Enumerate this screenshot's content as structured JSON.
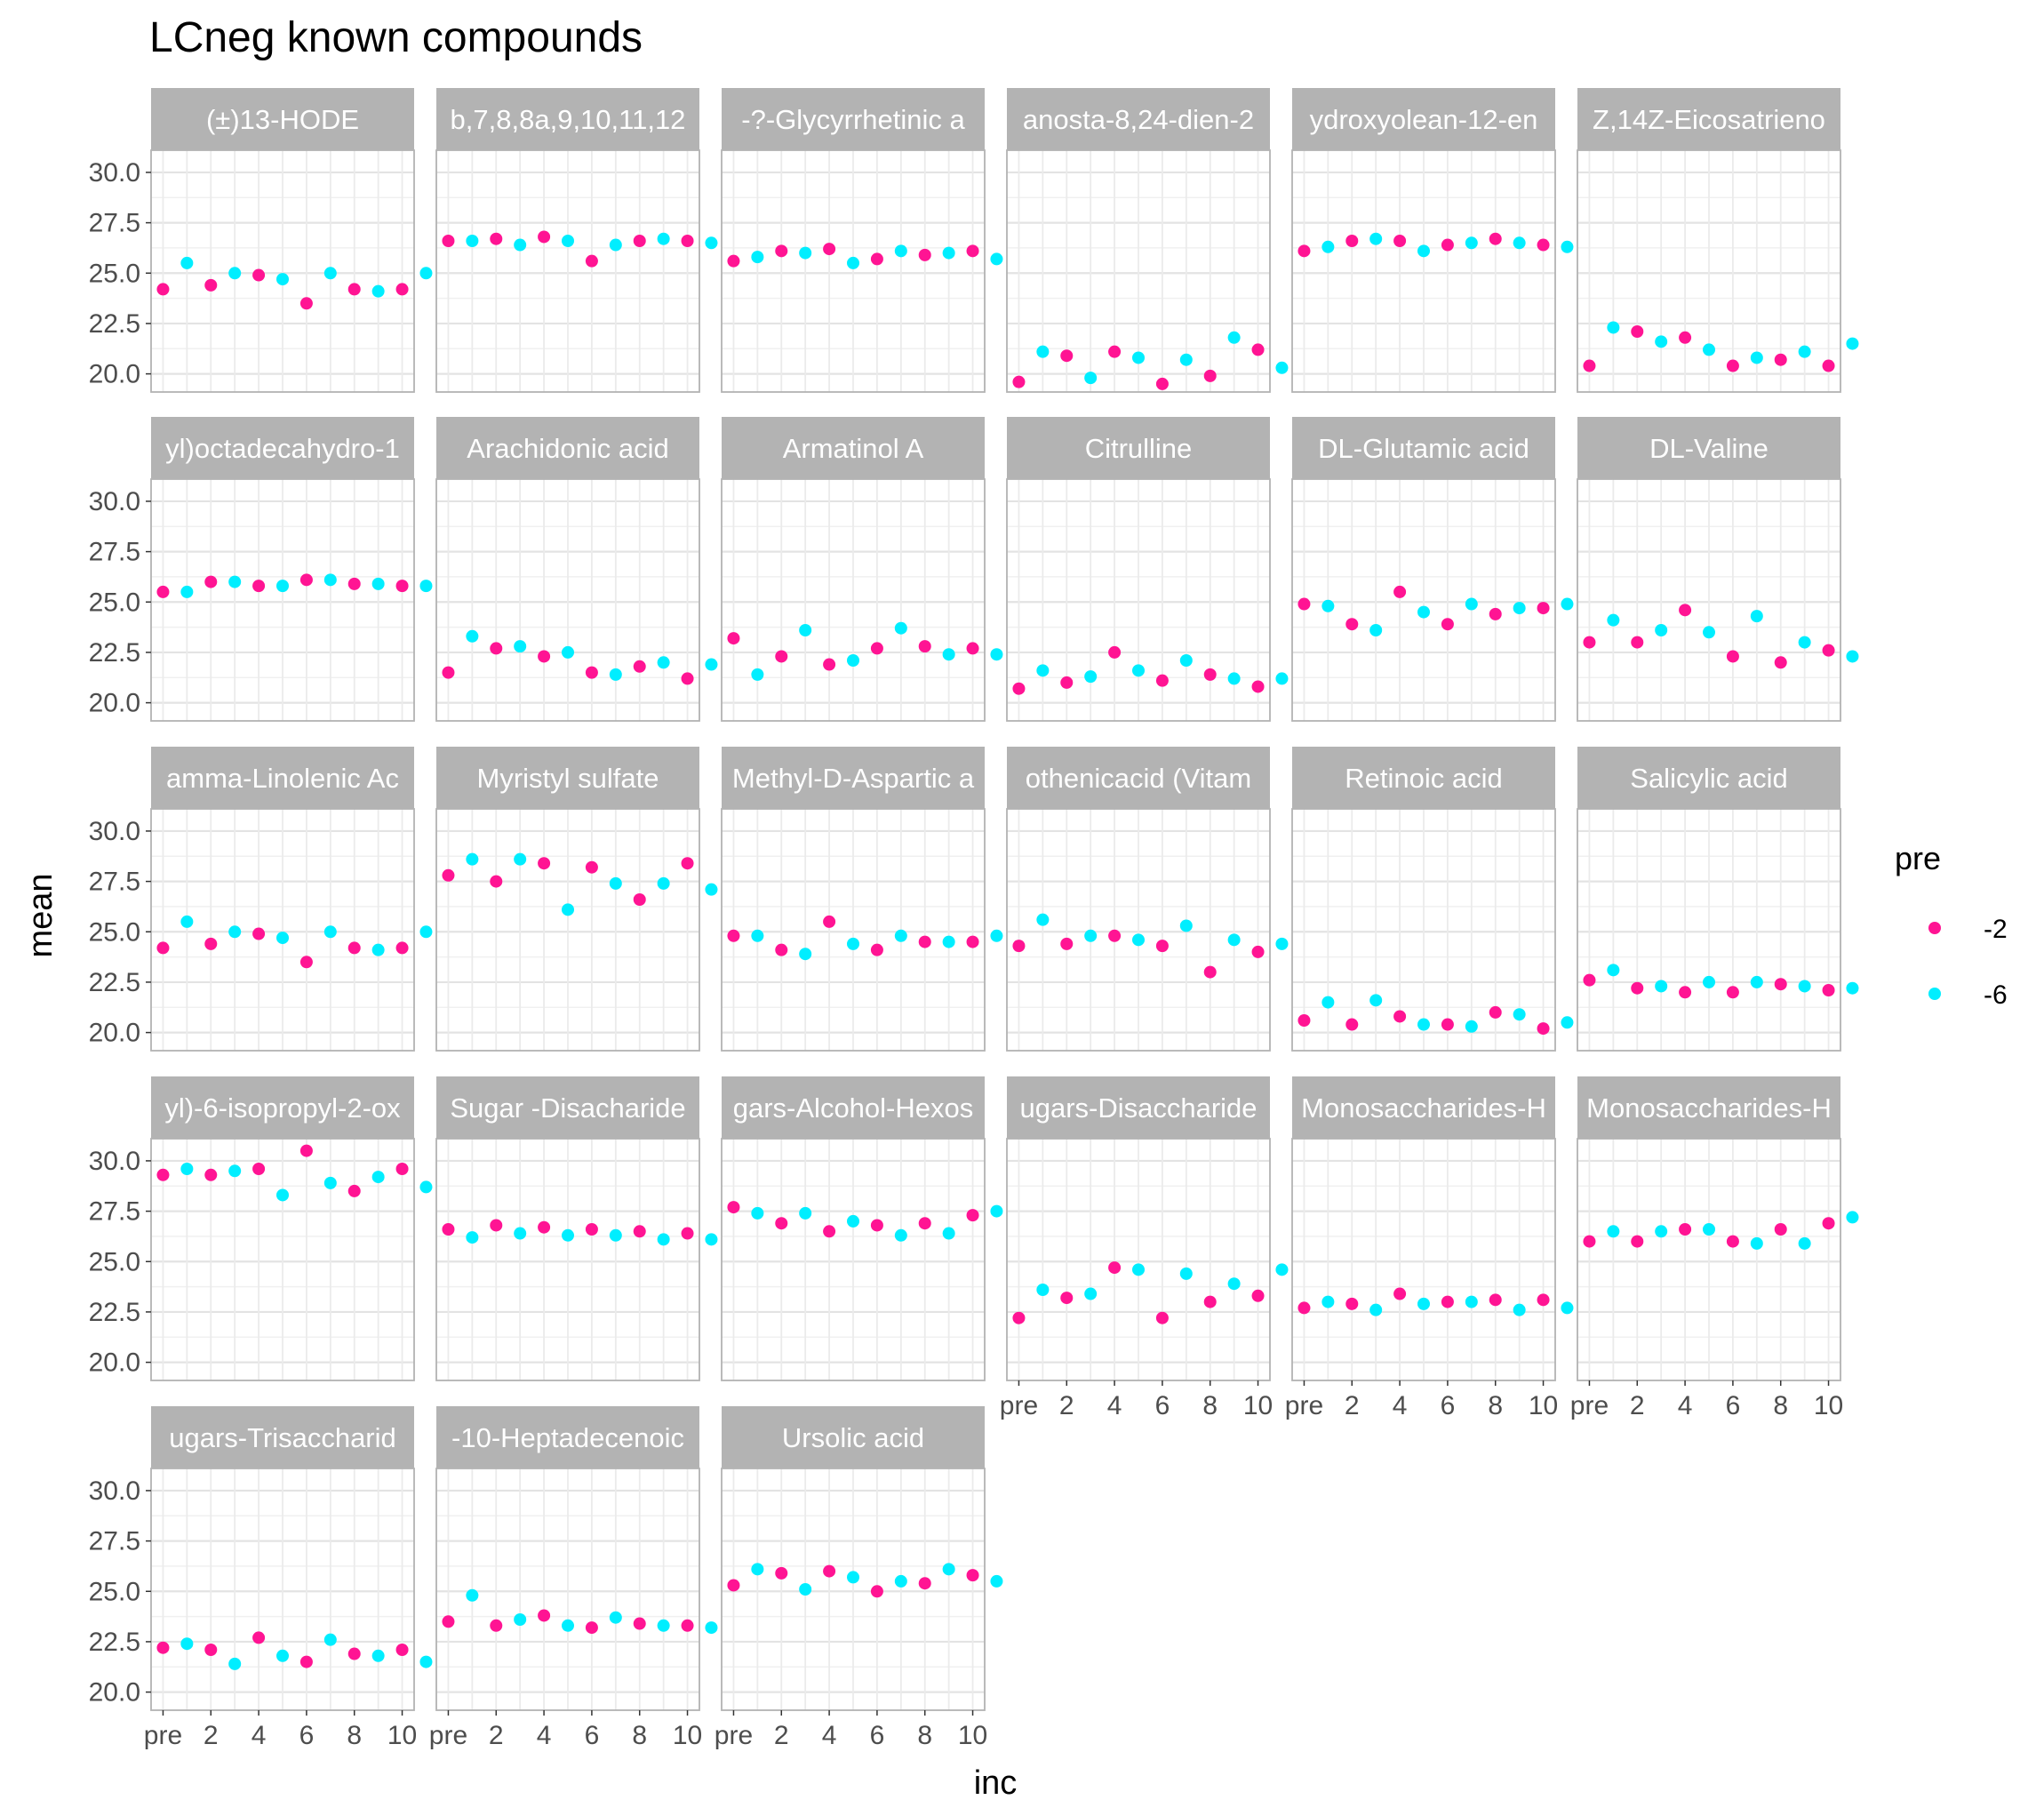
{
  "chart_data": {
    "type": "scatter",
    "title": "LCneg known compounds",
    "xlabel": "inc",
    "ylabel": "mean",
    "x_ticks": [
      "pre",
      "2",
      "4",
      "6",
      "8",
      "10"
    ],
    "ylim": [
      19.1,
      31.1
    ],
    "y_ticks": [
      "20.0",
      "22.5",
      "25.0",
      "27.5",
      "30.0"
    ],
    "grid": true,
    "legend": {
      "title": "pre",
      "position": "right",
      "entries": [
        {
          "label": "-2",
          "color": "#ff1493"
        },
        {
          "label": "-6",
          "color": "#00eeff"
        }
      ]
    },
    "x_categories": [
      "pre",
      "1",
      "2",
      "3",
      "4",
      "5",
      "6",
      "7",
      "8",
      "9",
      "10"
    ],
    "panels": [
      {
        "label": "(±)13-HODE",
        "pink": [
          24.2,
          24.4,
          24.9,
          23.5,
          24.2,
          24.2
        ],
        "cyan": [
          25.5,
          25.0,
          24.7,
          25.0,
          24.1,
          25.0
        ]
      },
      {
        "label": "b,7,8,8a,9,10,11,12",
        "pink": [
          26.6,
          26.7,
          26.8,
          25.6,
          26.6,
          26.6
        ],
        "cyan": [
          26.6,
          26.4,
          26.6,
          26.4,
          26.7,
          26.5
        ]
      },
      {
        "label": "-?-Glycyrrhetinic a",
        "pink": [
          25.6,
          26.1,
          26.2,
          25.7,
          25.9,
          26.1
        ],
        "cyan": [
          25.8,
          26.0,
          25.5,
          26.1,
          26.0,
          25.7
        ]
      },
      {
        "label": "anosta-8,24-dien-2",
        "pink": [
          19.6,
          20.9,
          21.1,
          19.5,
          19.9,
          21.2
        ],
        "cyan": [
          21.1,
          19.8,
          20.8,
          20.7,
          21.8,
          20.3
        ]
      },
      {
        "label": "ydroxyolean-12-en",
        "pink": [
          26.1,
          26.6,
          26.6,
          26.4,
          26.7,
          26.4
        ],
        "cyan": [
          26.3,
          26.7,
          26.1,
          26.5,
          26.5,
          26.3
        ]
      },
      {
        "label": "Z,14Z-Eicosatrieno",
        "pink": [
          20.4,
          22.1,
          21.8,
          20.4,
          20.7,
          20.4
        ],
        "cyan": [
          22.3,
          21.6,
          21.2,
          20.8,
          21.1,
          21.5
        ]
      },
      {
        "label": "yl)octadecahydro-1",
        "pink": [
          25.5,
          26.0,
          25.8,
          26.1,
          25.9,
          25.8
        ],
        "cyan": [
          25.5,
          26.0,
          25.8,
          26.1,
          25.9,
          25.8
        ]
      },
      {
        "label": "Arachidonic acid",
        "pink": [
          21.5,
          22.7,
          22.3,
          21.5,
          21.8,
          21.2
        ],
        "cyan": [
          23.3,
          22.8,
          22.5,
          21.4,
          22.0,
          21.9
        ]
      },
      {
        "label": "Armatinol A",
        "pink": [
          23.2,
          22.3,
          21.9,
          22.7,
          22.8,
          22.7
        ],
        "cyan": [
          21.4,
          23.6,
          22.1,
          23.7,
          22.4,
          22.4
        ]
      },
      {
        "label": "Citrulline",
        "pink": [
          20.7,
          21.0,
          22.5,
          21.1,
          21.4,
          20.8
        ],
        "cyan": [
          21.6,
          21.3,
          21.6,
          22.1,
          21.2,
          21.2
        ]
      },
      {
        "label": "DL-Glutamic acid",
        "pink": [
          24.9,
          23.9,
          25.5,
          23.9,
          24.4,
          24.7
        ],
        "cyan": [
          24.8,
          23.6,
          24.5,
          24.9,
          24.7,
          24.9
        ]
      },
      {
        "label": "DL-Valine",
        "pink": [
          23.0,
          23.0,
          24.6,
          22.3,
          22.0,
          22.6
        ],
        "cyan": [
          24.1,
          23.6,
          23.5,
          24.3,
          23.0,
          22.3
        ]
      },
      {
        "label": "amma-Linolenic Ac",
        "pink": [
          24.2,
          24.4,
          24.9,
          23.5,
          24.2,
          24.2
        ],
        "cyan": [
          25.5,
          25.0,
          24.7,
          25.0,
          24.1,
          25.0
        ]
      },
      {
        "label": "Myristyl sulfate",
        "pink": [
          27.8,
          27.5,
          28.4,
          28.2,
          26.6,
          28.4
        ],
        "cyan": [
          28.6,
          28.6,
          26.1,
          27.4,
          27.4,
          27.1
        ]
      },
      {
        "label": "Methyl-D-Aspartic a",
        "pink": [
          24.8,
          24.1,
          25.5,
          24.1,
          24.5,
          24.5
        ],
        "cyan": [
          24.8,
          23.9,
          24.4,
          24.8,
          24.5,
          24.8
        ]
      },
      {
        "label": "othenicacid (Vitam",
        "pink": [
          24.3,
          24.4,
          24.8,
          24.3,
          23.0,
          24.0
        ],
        "cyan": [
          25.6,
          24.8,
          24.6,
          25.3,
          24.6,
          24.4
        ]
      },
      {
        "label": "Retinoic acid",
        "pink": [
          20.6,
          20.4,
          20.8,
          20.4,
          21.0,
          20.2
        ],
        "cyan": [
          21.5,
          21.6,
          20.4,
          20.3,
          20.9,
          20.5
        ]
      },
      {
        "label": "Salicylic acid",
        "pink": [
          22.6,
          22.2,
          22.0,
          22.0,
          22.4,
          22.1
        ],
        "cyan": [
          23.1,
          22.3,
          22.5,
          22.5,
          22.3,
          22.2
        ]
      },
      {
        "label": "yl)-6-isopropyl-2-ox",
        "pink": [
          29.3,
          29.3,
          29.6,
          30.5,
          28.5,
          29.6
        ],
        "cyan": [
          29.6,
          29.5,
          28.3,
          28.9,
          29.2,
          28.7
        ]
      },
      {
        "label": "Sugar -Disacharide",
        "pink": [
          26.6,
          26.8,
          26.7,
          26.6,
          26.5,
          26.4
        ],
        "cyan": [
          26.2,
          26.4,
          26.3,
          26.3,
          26.1,
          26.1
        ]
      },
      {
        "label": "gars-Alcohol-Hexos",
        "pink": [
          27.7,
          26.9,
          26.5,
          26.8,
          26.9,
          27.3
        ],
        "cyan": [
          27.4,
          27.4,
          27.0,
          26.3,
          26.4,
          27.5
        ]
      },
      {
        "label": "ugars-Disaccharide",
        "pink": [
          22.2,
          23.2,
          24.7,
          22.2,
          23.0,
          23.3
        ],
        "cyan": [
          23.6,
          23.4,
          24.6,
          24.4,
          23.9,
          24.6
        ]
      },
      {
        "label": "Monosaccharides-H",
        "pink": [
          22.7,
          22.9,
          23.4,
          23.0,
          23.1,
          23.1
        ],
        "cyan": [
          23.0,
          22.6,
          22.9,
          23.0,
          22.6,
          22.7
        ]
      },
      {
        "label": "Monosaccharides-H",
        "pink": [
          26.0,
          26.0,
          26.6,
          26.0,
          26.6,
          26.9
        ],
        "cyan": [
          26.5,
          26.5,
          26.6,
          25.9,
          25.9,
          27.2
        ]
      },
      {
        "label": "ugars-Trisaccharid",
        "pink": [
          22.2,
          22.1,
          22.7,
          21.5,
          21.9,
          22.1
        ],
        "cyan": [
          22.4,
          21.4,
          21.8,
          22.6,
          21.8,
          21.5
        ]
      },
      {
        "label": "-10-Heptadecenoic",
        "pink": [
          23.5,
          23.3,
          23.8,
          23.2,
          23.4,
          23.3
        ],
        "cyan": [
          24.8,
          23.6,
          23.3,
          23.7,
          23.3,
          23.2
        ]
      },
      {
        "label": "Ursolic acid",
        "pink": [
          25.3,
          25.9,
          26.0,
          25.0,
          25.4,
          25.8
        ],
        "cyan": [
          26.1,
          25.1,
          25.7,
          25.5,
          26.1,
          25.5
        ]
      }
    ]
  }
}
